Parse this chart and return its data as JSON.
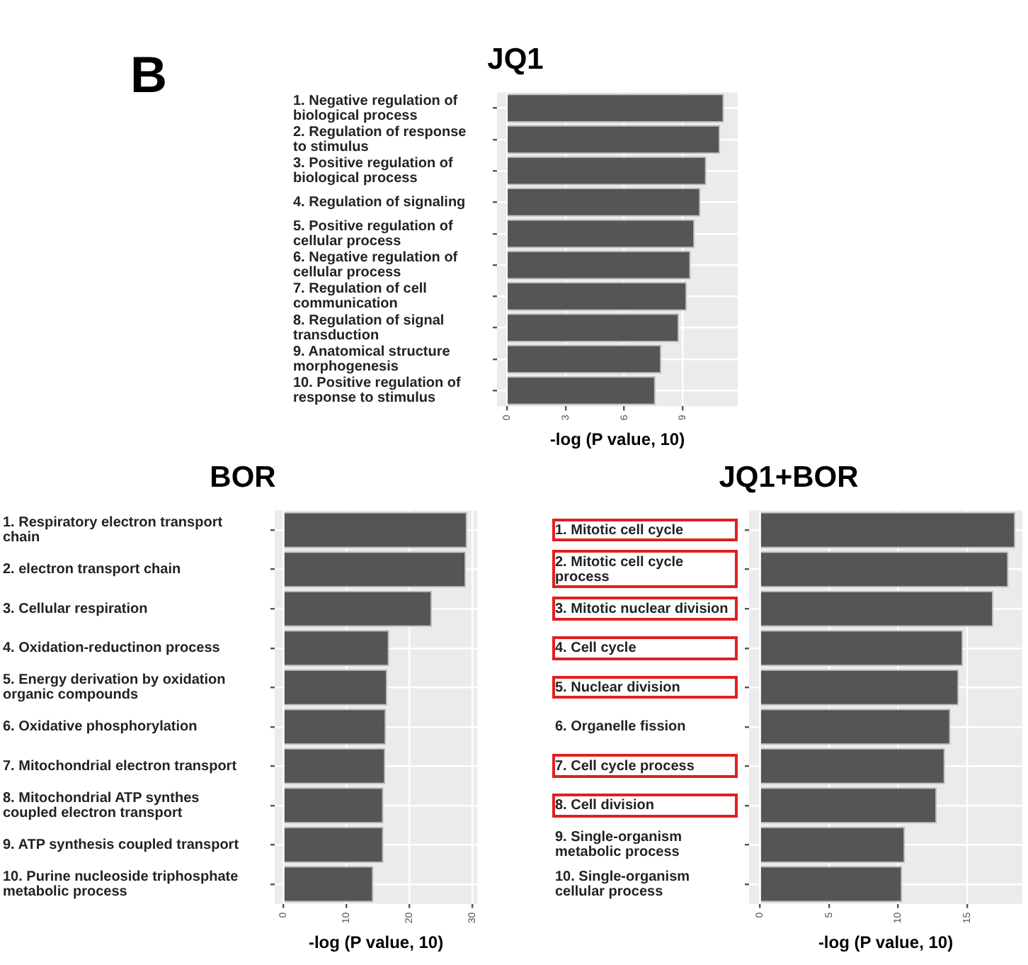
{
  "chart_data": [
    {
      "type": "bar",
      "orientation": "horizontal",
      "title": "JQ1",
      "xlabel": "-log (P value, 10)",
      "annotations": [
        "B"
      ],
      "color": "#555555",
      "grid": true,
      "categories": [
        "1. Negative regulation of biological process",
        "2. Regulation of response to stimulus",
        "3. Positive regulation of biological process",
        "4. Regulation of signaling",
        "5. Positive regulation of cellular process",
        "6. Negative regulation of cellular process",
        "7. Regulation of cell communication",
        "8. Regulation of signal transduction",
        "9. Anatomical structure morphogenesis",
        "10. Positive regulation of response to stimulus"
      ],
      "values": [
        11.1,
        10.9,
        10.2,
        9.9,
        9.6,
        9.4,
        9.2,
        8.8,
        7.9,
        7.6
      ],
      "xlim": [
        -0.5,
        11.8
      ],
      "xticks": [
        0,
        3,
        6,
        9
      ]
    },
    {
      "type": "bar",
      "orientation": "horizontal",
      "title": "BOR",
      "xlabel": "-log (P value, 10)",
      "color": "#555555",
      "grid": true,
      "categories": [
        "1. Respiratory electron transport chain",
        "2. electron transport chain",
        "3. Cellular respiration",
        "4. Oxidation-reductinon process",
        "5. Energy derivation by oxidation organic compounds",
        "6. Oxidative phosphorylation",
        "7. Mitochondrial electron transport",
        "8. Mitochondrial ATP synthes coupled electron transport",
        "9. ATP synthesis coupled transport",
        "10. Purine nucleoside triphosphate metabolic process"
      ],
      "values": [
        29.2,
        29.0,
        23.6,
        16.8,
        16.5,
        16.3,
        16.2,
        15.9,
        15.9,
        14.3
      ],
      "xlim": [
        -1.4,
        30.8
      ],
      "xticks": [
        0,
        10,
        20,
        30
      ]
    },
    {
      "type": "bar",
      "orientation": "horizontal",
      "title": "JQ1+BOR",
      "xlabel": "-log (P value, 10)",
      "color": "#555555",
      "grid": true,
      "categories": [
        "1. Mitotic cell cycle",
        "2. Mitotic cell cycle process",
        "3. Mitotic nuclear division",
        "4. Cell cycle",
        "5. Nuclear division",
        "6. Organelle fission",
        "7. Cell cycle process",
        "8. Cell division",
        "9. Single-organism metabolic process",
        "10. Single-organism cellular process"
      ],
      "values": [
        18.5,
        18.0,
        16.9,
        14.7,
        14.4,
        13.8,
        13.4,
        12.8,
        10.5,
        10.3
      ],
      "xlim": [
        -0.8,
        19.0
      ],
      "xticks": [
        0,
        5,
        10,
        15
      ]
    }
  ]
}
